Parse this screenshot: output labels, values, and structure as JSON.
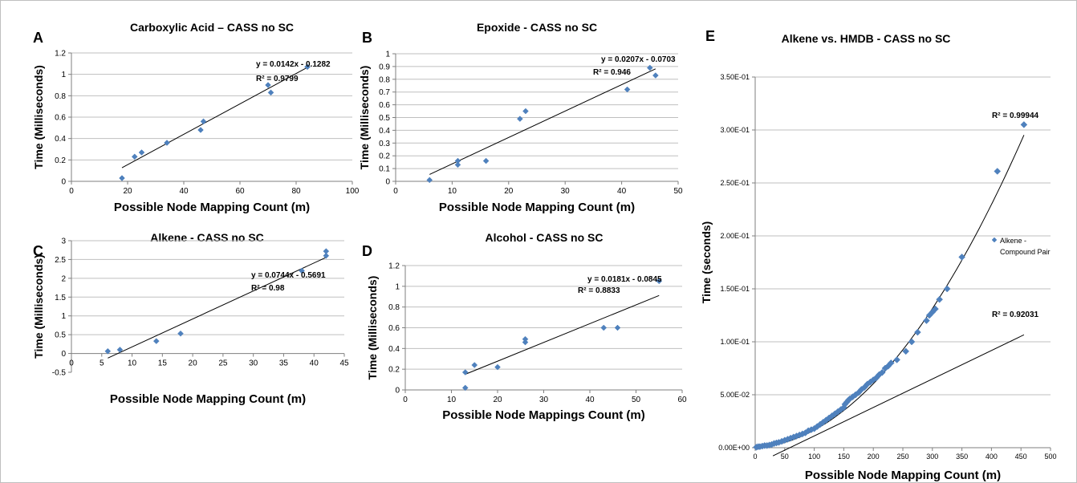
{
  "colors": {
    "marker": "#4f81bd",
    "axis": "#7f7f7f",
    "grid": "#bfbfbf",
    "text": "#000000",
    "border": "#bfbfbf"
  },
  "chart_data": [
    {
      "panel": "A",
      "type": "scatter",
      "title": "Carboxylic Acid – CASS no SC",
      "xlabel": "Possible Node Mapping Count (m)",
      "ylabel": "Time (Milliseconds)",
      "xlim": [
        0,
        100
      ],
      "ylim": [
        0,
        1.2
      ],
      "xticks": [
        0,
        20,
        40,
        60,
        80,
        100
      ],
      "yticks": [
        0,
        0.2,
        0.4,
        0.6,
        0.8,
        1,
        1.2
      ],
      "xtick_labels": [
        "0",
        "20",
        "40",
        "60",
        "80",
        "100"
      ],
      "ytick_labels": [
        "0",
        "0.2",
        "0.4",
        "0.6",
        "0.8",
        "1",
        "1.2"
      ],
      "grid": "horizontal",
      "points": [
        [
          18,
          0.03
        ],
        [
          22.5,
          0.23
        ],
        [
          25,
          0.27
        ],
        [
          34,
          0.36
        ],
        [
          46,
          0.48
        ],
        [
          47,
          0.56
        ],
        [
          70,
          0.9
        ],
        [
          71,
          0.83
        ],
        [
          84,
          1.07
        ]
      ],
      "trendlines": [
        {
          "kind": "linear",
          "slope": 0.0142,
          "intercept": -0.1282,
          "x_range": [
            18,
            84
          ]
        }
      ],
      "annotations": [
        "y = 0.0142x - 0.1282",
        "R² = 0.9799"
      ]
    },
    {
      "panel": "B",
      "type": "scatter",
      "title": "Epoxide - CASS no SC",
      "xlabel": "Possible Node Mapping Count (m)",
      "ylabel": "Time (Milliseconds)",
      "xlim": [
        0,
        50
      ],
      "ylim": [
        0,
        1
      ],
      "xticks": [
        0,
        10,
        20,
        30,
        40,
        50
      ],
      "yticks": [
        0,
        0.1,
        0.2,
        0.3,
        0.4,
        0.5,
        0.6,
        0.7,
        0.8,
        0.9,
        1
      ],
      "xtick_labels": [
        "0",
        "10",
        "20",
        "30",
        "40",
        "50"
      ],
      "ytick_labels": [
        "0",
        "0.1",
        "0.2",
        "0.3",
        "0.4",
        "0.5",
        "0.6",
        "0.7",
        "0.8",
        "0.9",
        "1"
      ],
      "grid": "horizontal",
      "points": [
        [
          6,
          0.01
        ],
        [
          11,
          0.13
        ],
        [
          11,
          0.16
        ],
        [
          16,
          0.16
        ],
        [
          22,
          0.49
        ],
        [
          23,
          0.55
        ],
        [
          41,
          0.72
        ],
        [
          45,
          0.89
        ],
        [
          46,
          0.83
        ]
      ],
      "trendlines": [
        {
          "kind": "linear",
          "slope": 0.0207,
          "intercept": -0.0703,
          "x_range": [
            6,
            46
          ]
        }
      ],
      "annotations": [
        "y = 0.0207x - 0.0703",
        "R² = 0.946"
      ]
    },
    {
      "panel": "C",
      "type": "scatter",
      "title": "Alkene - CASS no SC",
      "xlabel": "Possible Node Mapping Count (m)",
      "ylabel": "Time (Milliseconds)",
      "xlim": [
        0,
        45
      ],
      "ylim": [
        -0.5,
        3
      ],
      "xticks": [
        0,
        5,
        10,
        15,
        20,
        25,
        30,
        35,
        40,
        45
      ],
      "yticks": [
        -0.5,
        0,
        0.5,
        1,
        1.5,
        2,
        2.5,
        3
      ],
      "xtick_labels": [
        "0",
        "5",
        "10",
        "15",
        "20",
        "25",
        "30",
        "35",
        "40",
        "45"
      ],
      "ytick_labels": [
        "-0.5",
        "0",
        "0.5",
        "1",
        "1.5",
        "2",
        "2.5",
        "3"
      ],
      "grid": "horizontal",
      "points": [
        [
          6,
          0.06
        ],
        [
          8,
          0.1
        ],
        [
          14,
          0.33
        ],
        [
          18,
          0.53
        ],
        [
          38,
          2.2
        ],
        [
          42,
          2.6
        ],
        [
          42,
          2.72
        ]
      ],
      "trendlines": [
        {
          "kind": "linear",
          "slope": 0.0744,
          "intercept": -0.5691,
          "x_range": [
            6,
            42
          ]
        }
      ],
      "annotations": [
        "y = 0.0744x - 0.5691",
        "R² = 0.98"
      ]
    },
    {
      "panel": "D",
      "type": "scatter",
      "title": "Alcohol - CASS no SC",
      "xlabel": "Possible Node Mappings Count (m)",
      "ylabel": "Time (Milliseconds)",
      "xlim": [
        0,
        60
      ],
      "ylim": [
        0,
        1.2
      ],
      "xticks": [
        0,
        10,
        20,
        30,
        40,
        50,
        60
      ],
      "yticks": [
        0,
        0.2,
        0.4,
        0.6,
        0.8,
        1,
        1.2
      ],
      "xtick_labels": [
        "0",
        "10",
        "20",
        "30",
        "40",
        "50",
        "60"
      ],
      "ytick_labels": [
        "0",
        "0.2",
        "0.4",
        "0.6",
        "0.8",
        "1",
        "1.2"
      ],
      "grid": "horizontal",
      "points": [
        [
          13,
          0.02
        ],
        [
          13,
          0.17
        ],
        [
          15,
          0.24
        ],
        [
          20,
          0.22
        ],
        [
          26,
          0.46
        ],
        [
          26,
          0.49
        ],
        [
          43,
          0.6
        ],
        [
          46,
          0.6
        ],
        [
          55,
          1.05
        ]
      ],
      "trendlines": [
        {
          "kind": "linear",
          "slope": 0.0181,
          "intercept": -0.0845,
          "x_range": [
            13,
            55
          ]
        }
      ],
      "annotations": [
        "y = 0.0181x - 0.0845",
        "R² = 0.8833"
      ]
    },
    {
      "panel": "E",
      "type": "scatter",
      "title": "Alkene vs. HMDB - CASS no SC",
      "xlabel": "Possible Node Mapping Count (m)",
      "ylabel": "Time (seconds)",
      "xlim": [
        0,
        500
      ],
      "ylim": [
        0,
        0.35
      ],
      "xticks": [
        0,
        50,
        100,
        150,
        200,
        250,
        300,
        350,
        400,
        450,
        500
      ],
      "yticks": [
        0,
        0.05,
        0.1,
        0.15,
        0.2,
        0.25,
        0.3,
        0.35
      ],
      "xtick_labels": [
        "0",
        "50",
        "100",
        "150",
        "200",
        "250",
        "300",
        "350",
        "400",
        "450",
        "500"
      ],
      "ytick_labels": [
        "0.00E+00",
        "5.00E-02",
        "1.00E-01",
        "1.50E-01",
        "2.00E-01",
        "2.50E-01",
        "3.00E-01",
        "3.50E-01"
      ],
      "grid": "horizontal",
      "legend": {
        "position": "right",
        "label": "Alkene - Compound Pair"
      },
      "series": [
        {
          "name": "Alkene - Compound Pair",
          "points": [
            [
              2,
              0.0005
            ],
            [
              5,
              0.001
            ],
            [
              8,
              0.001
            ],
            [
              12,
              0.0015
            ],
            [
              16,
              0.002
            ],
            [
              20,
              0.002
            ],
            [
              24,
              0.0025
            ],
            [
              28,
              0.003
            ],
            [
              32,
              0.004
            ],
            [
              36,
              0.0045
            ],
            [
              40,
              0.005
            ],
            [
              45,
              0.006
            ],
            [
              50,
              0.007
            ],
            [
              55,
              0.008
            ],
            [
              60,
              0.009
            ],
            [
              65,
              0.01
            ],
            [
              70,
              0.011
            ],
            [
              75,
              0.012
            ],
            [
              80,
              0.013
            ],
            [
              85,
              0.014
            ],
            [
              90,
              0.016
            ],
            [
              95,
              0.017
            ],
            [
              100,
              0.018
            ],
            [
              105,
              0.02
            ],
            [
              110,
              0.022
            ],
            [
              115,
              0.024
            ],
            [
              120,
              0.026
            ],
            [
              125,
              0.028
            ],
            [
              130,
              0.03
            ],
            [
              135,
              0.032
            ],
            [
              140,
              0.034
            ],
            [
              145,
              0.036
            ],
            [
              150,
              0.038
            ],
            [
              152,
              0.041
            ],
            [
              155,
              0.043
            ],
            [
              158,
              0.045
            ],
            [
              160,
              0.046
            ],
            [
              165,
              0.048
            ],
            [
              170,
              0.05
            ],
            [
              175,
              0.052
            ],
            [
              180,
              0.055
            ],
            [
              185,
              0.057
            ],
            [
              190,
              0.06
            ],
            [
              195,
              0.062
            ],
            [
              200,
              0.064
            ],
            [
              205,
              0.066
            ],
            [
              210,
              0.069
            ],
            [
              215,
              0.071
            ],
            [
              220,
              0.075
            ],
            [
              225,
              0.077
            ],
            [
              230,
              0.08
            ],
            [
              240,
              0.083
            ],
            [
              255,
              0.091
            ],
            [
              265,
              0.1
            ],
            [
              275,
              0.109
            ],
            [
              290,
              0.12
            ],
            [
              295,
              0.125
            ],
            [
              300,
              0.128
            ],
            [
              305,
              0.131
            ],
            [
              312,
              0.14
            ],
            [
              325,
              0.15
            ],
            [
              350,
              0.18
            ],
            [
              410,
              0.261
            ],
            [
              455,
              0.305
            ]
          ]
        }
      ],
      "trendlines": [
        {
          "kind": "polynomial",
          "coefficients": [
            0,
            3e-05,
            1.36e-06
          ],
          "x_range": [
            0,
            455
          ],
          "label": "R² = 0.99944"
        },
        {
          "kind": "linear",
          "slope": 0.000269,
          "intercept": -0.0158,
          "x_range": [
            30,
            455
          ],
          "label": "R² = 0.92031"
        }
      ],
      "annotations": [
        "R² = 0.99944",
        "R² = 0.92031"
      ]
    }
  ]
}
